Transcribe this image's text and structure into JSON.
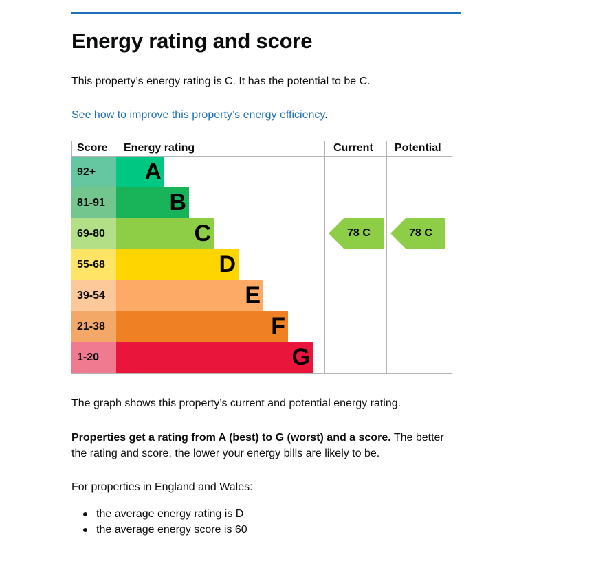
{
  "page": {
    "heading": "Energy rating and score",
    "intro": "This property’s energy rating is C. It has the potential to be C.",
    "link_text": "See how to improve this property’s energy efficiency",
    "link_suffix": ".",
    "graph_caption": "The graph shows this property’s current and potential energy rating.",
    "rating_bold": "Properties get a rating from A (best) to G (worst) and a score.",
    "rating_rest": " The better the rating and score, the lower your energy bills are likely to be.",
    "region_intro": "For properties in England and Wales:",
    "averages": [
      "the average energy rating is D",
      "the average energy score is 60"
    ]
  },
  "chart_data": {
    "type": "table",
    "headers": {
      "score": "Score",
      "rating": "Energy rating",
      "current": "Current",
      "potential": "Potential"
    },
    "bands": [
      {
        "letter": "A",
        "score": "92+",
        "color": "#008054",
        "score_bg": "#64c7a1",
        "band_color": "#00c781"
      },
      {
        "letter": "B",
        "score": "81-91",
        "color": "#19b459",
        "score_bg": "#74c68f",
        "band_color": "#19b459"
      },
      {
        "letter": "C",
        "score": "69-80",
        "color": "#8dce46",
        "score_bg": "#b3df86",
        "band_color": "#8dce46"
      },
      {
        "letter": "D",
        "score": "55-68",
        "color": "#ffd500",
        "score_bg": "#ffe466",
        "band_color": "#ffd500"
      },
      {
        "letter": "E",
        "score": "39-54",
        "color": "#fcaa65",
        "score_bg": "#fdc89a",
        "band_color": "#fcaa65"
      },
      {
        "letter": "F",
        "score": "21-38",
        "color": "#ef8023",
        "score_bg": "#f4a867",
        "band_color": "#ef8023"
      },
      {
        "letter": "G",
        "score": "1-20",
        "color": "#e9153b",
        "score_bg": "#f07a8f",
        "band_color": "#e9153b"
      }
    ],
    "current": {
      "score": 78,
      "letter": "C",
      "label": "78 C",
      "color": "#8dce46"
    },
    "potential": {
      "score": 78,
      "letter": "C",
      "label": "78 C",
      "color": "#8dce46"
    }
  }
}
